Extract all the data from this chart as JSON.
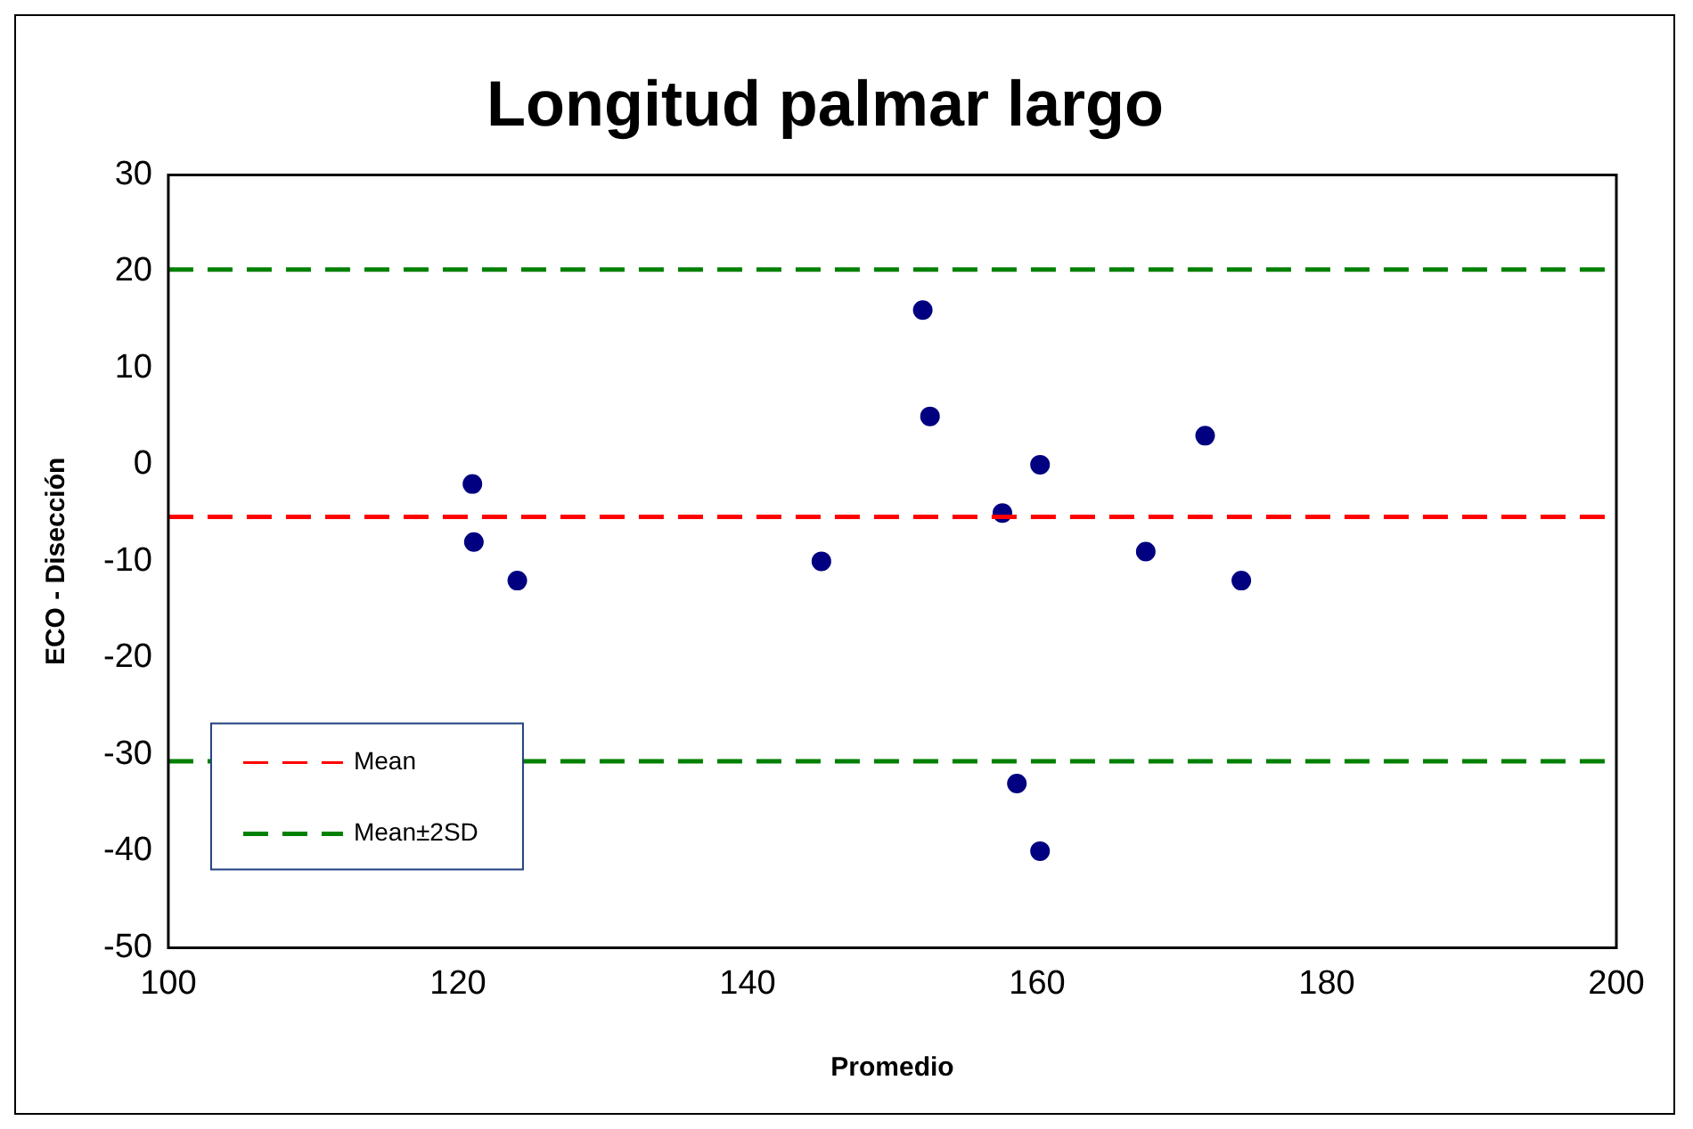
{
  "chart_data": {
    "type": "scatter",
    "title": "Longitud palmar largo",
    "xlabel": "Promedio",
    "ylabel": "ECO - Disección",
    "x": [
      121.0,
      121.1,
      124.1,
      145.1,
      152.1,
      152.6,
      157.6,
      160.2,
      158.6,
      160.2,
      167.5,
      171.6,
      174.1
    ],
    "series": [
      {
        "color": "#000080",
        "values": [
          -2,
          -8,
          -12,
          -10,
          16,
          5,
          -5,
          0,
          -33,
          -40,
          -9,
          3,
          -12
        ]
      }
    ],
    "xlim": [
      100,
      200
    ],
    "xticks": [
      100,
      120,
      140,
      160,
      180,
      200
    ],
    "ylim": [
      -50,
      30
    ],
    "yticks": [
      -50,
      -40,
      -30,
      -20,
      -10,
      0,
      10,
      20,
      30
    ],
    "marker": "circle",
    "legend": "bottom left",
    "ref_lines": [
      {
        "axis": "y",
        "value": -5.4,
        "label": "Mean",
        "color": "#ff0000",
        "line_style": "dashed"
      },
      {
        "axis": "y",
        "value": 20.2,
        "label": "Mean±2SD",
        "color": "#008000",
        "line_style": "dashed"
      },
      {
        "axis": "y",
        "value": -30.7,
        "label": null,
        "color": "#008000",
        "line_style": "dashed"
      }
    ]
  }
}
